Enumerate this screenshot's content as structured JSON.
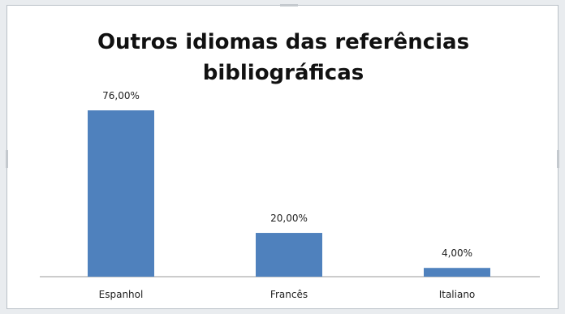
{
  "chart_data": {
    "type": "bar",
    "title_lines": [
      "Outros idiomas das referências",
      "bibliográficas"
    ],
    "categories": [
      "Espanhol",
      "Francês",
      "Italiano"
    ],
    "values": [
      76,
      20,
      4
    ],
    "data_labels": [
      "76,00%",
      "20,00%",
      "4,00%"
    ],
    "ylim": [
      0,
      100
    ],
    "grid": false,
    "legend": false,
    "bar_color": "#4f81bd"
  }
}
